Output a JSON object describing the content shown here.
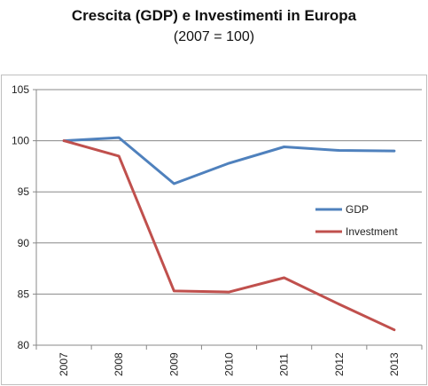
{
  "chart_data": {
    "type": "line",
    "title": "Crescita (GDP) e Investimenti in Europa",
    "subtitle": "(2007 = 100)",
    "categories": [
      "2007",
      "2008",
      "2009",
      "2010",
      "2011",
      "2012",
      "2013"
    ],
    "series": [
      {
        "name": "GDP",
        "color": "#4F81BD",
        "values": [
          100.0,
          100.3,
          95.8,
          97.8,
          99.4,
          99.05,
          99.0
        ]
      },
      {
        "name": "Investment",
        "color": "#C0504D",
        "values": [
          100.0,
          98.5,
          85.3,
          85.2,
          86.6,
          84.0,
          81.5
        ]
      }
    ],
    "ylim": [
      80,
      105
    ],
    "yticks": [
      "80",
      "85",
      "90",
      "95",
      "100",
      "105"
    ],
    "grid": true,
    "legend_position": "right"
  }
}
